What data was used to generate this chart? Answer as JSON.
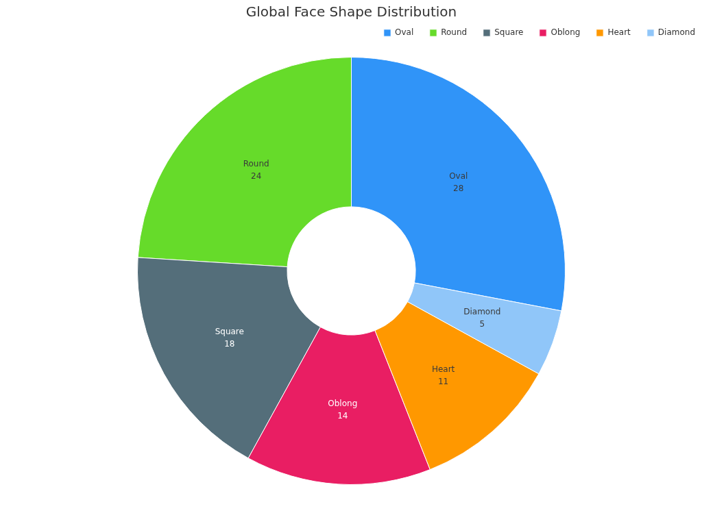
{
  "chart_data": {
    "type": "donut",
    "title": "Global Face Shape Distribution",
    "categories": [
      "Oval",
      "Round",
      "Square",
      "Oblong",
      "Heart",
      "Diamond"
    ],
    "values": [
      28,
      24,
      18,
      14,
      11,
      5
    ],
    "colors": [
      "#3094f8",
      "#66db2a",
      "#546e7a",
      "#e91e63",
      "#ff9800",
      "#90c6f9"
    ],
    "data_labels": true,
    "legend": "top right"
  }
}
